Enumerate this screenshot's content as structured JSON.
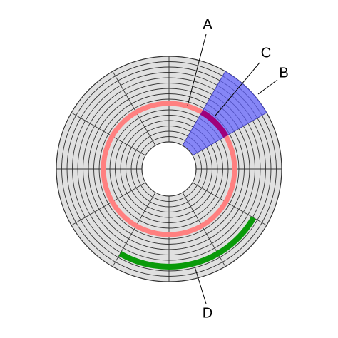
{
  "labels": [
    "A",
    "B",
    "C",
    "D"
  ]
}
